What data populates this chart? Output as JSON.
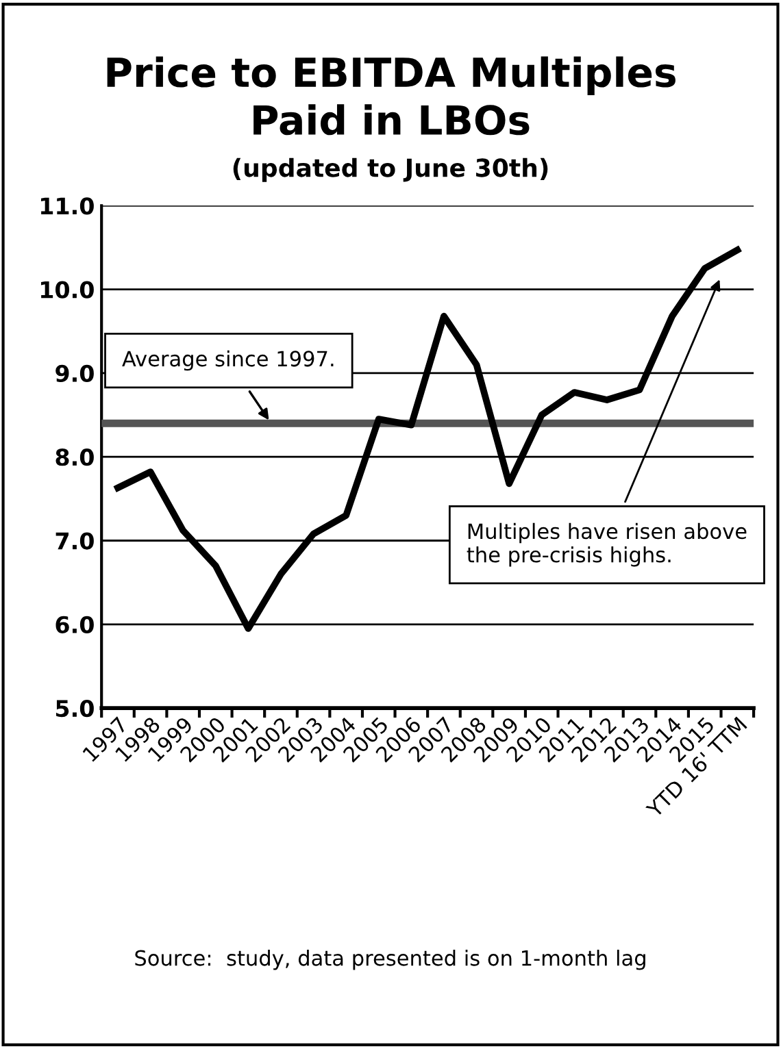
{
  "chart_data": {
    "type": "line",
    "title": "Price to EBITDA Multiples\nPaid in LBOs",
    "subtitle": "(updated to June 30th)",
    "categories": [
      "1997",
      "1998",
      "1999",
      "2000",
      "2001",
      "2002",
      "2003",
      "2004",
      "2005",
      "2006",
      "2007",
      "2008",
      "2009",
      "2010",
      "2011",
      "2012",
      "2013",
      "2014",
      "2015",
      "YTD 16' TTM"
    ],
    "series": [
      {
        "color": "#000000",
        "values": [
          7.63,
          7.82,
          7.12,
          6.7,
          5.95,
          6.6,
          7.08,
          7.3,
          8.45,
          8.38,
          9.68,
          9.1,
          7.68,
          8.5,
          8.77,
          8.68,
          8.8,
          9.68,
          10.25,
          10.47
        ]
      }
    ],
    "ylim": [
      5,
      11
    ],
    "yticks": [
      {
        "value": 5,
        "label": "5.0"
      },
      {
        "value": 6,
        "label": "6.0"
      },
      {
        "value": 7,
        "label": "7.0"
      },
      {
        "value": 8,
        "label": "8.0"
      },
      {
        "value": 9,
        "label": "9.0"
      },
      {
        "value": 10,
        "label": "10.0"
      },
      {
        "value": 11,
        "label": "11.0"
      }
    ],
    "grid": "y",
    "marker": "none",
    "line_style": "solid",
    "ref_lines": [
      {
        "axis": "y",
        "value": 8.4,
        "label": "Average since 1997.",
        "color": "#555555"
      }
    ],
    "annotations": [
      "Multiples have risen above\nthe pre-crisis highs.",
      "Source:  study, data presented is on 1-month lag"
    ]
  }
}
